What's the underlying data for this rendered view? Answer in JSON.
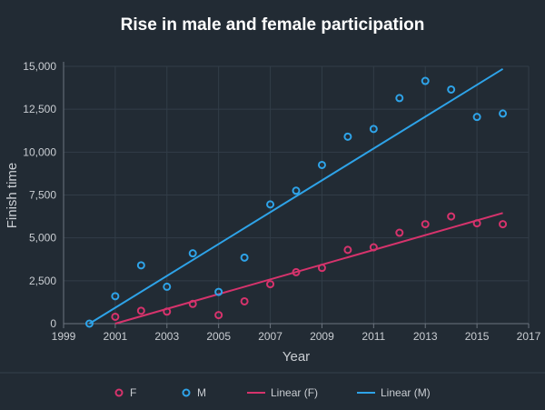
{
  "chart_data": {
    "type": "scatter",
    "title": "Rise in male and female participation",
    "xlabel": "Year",
    "ylabel": "Finish time",
    "xlim": [
      1999,
      2017
    ],
    "ylim": [
      0,
      15000
    ],
    "x_ticks": [
      "1999",
      "2001",
      "2003",
      "2005",
      "2007",
      "2009",
      "2011",
      "2013",
      "2015",
      "2017"
    ],
    "y_ticks": [
      "0",
      "2,500",
      "5,000",
      "7,500",
      "10,000",
      "12,500",
      "15,000"
    ],
    "grid": true,
    "legend_position": "bottom",
    "series": [
      {
        "name": "F",
        "kind": "scatter",
        "color": "#d6336c",
        "points": [
          [
            2001,
            400
          ],
          [
            2002,
            750
          ],
          [
            2003,
            700
          ],
          [
            2004,
            1150
          ],
          [
            2005,
            500
          ],
          [
            2006,
            1300
          ],
          [
            2007,
            2300
          ],
          [
            2008,
            3000
          ],
          [
            2009,
            3250
          ],
          [
            2010,
            4300
          ],
          [
            2011,
            4450
          ],
          [
            2012,
            5300
          ],
          [
            2013,
            5800
          ],
          [
            2014,
            6250
          ],
          [
            2015,
            5850
          ],
          [
            2016,
            5800
          ]
        ]
      },
      {
        "name": "M",
        "kind": "scatter",
        "color": "#2ea3e8",
        "points": [
          [
            2000,
            0
          ],
          [
            2001,
            1600
          ],
          [
            2002,
            3400
          ],
          [
            2003,
            2150
          ],
          [
            2004,
            4100
          ],
          [
            2005,
            1850
          ],
          [
            2006,
            3850
          ],
          [
            2007,
            6950
          ],
          [
            2008,
            7750
          ],
          [
            2009,
            9250
          ],
          [
            2010,
            10900
          ],
          [
            2011,
            11350
          ],
          [
            2012,
            13150
          ],
          [
            2013,
            14150
          ],
          [
            2014,
            13650
          ],
          [
            2015,
            12050
          ],
          [
            2016,
            12250
          ]
        ]
      },
      {
        "name": "Linear (F)",
        "kind": "line",
        "color": "#d6336c",
        "points": [
          [
            2001,
            0
          ],
          [
            2016,
            6450
          ]
        ]
      },
      {
        "name": "Linear (M)",
        "kind": "line",
        "color": "#2ea3e8",
        "points": [
          [
            2000,
            0
          ],
          [
            2016,
            14850
          ]
        ]
      }
    ]
  }
}
